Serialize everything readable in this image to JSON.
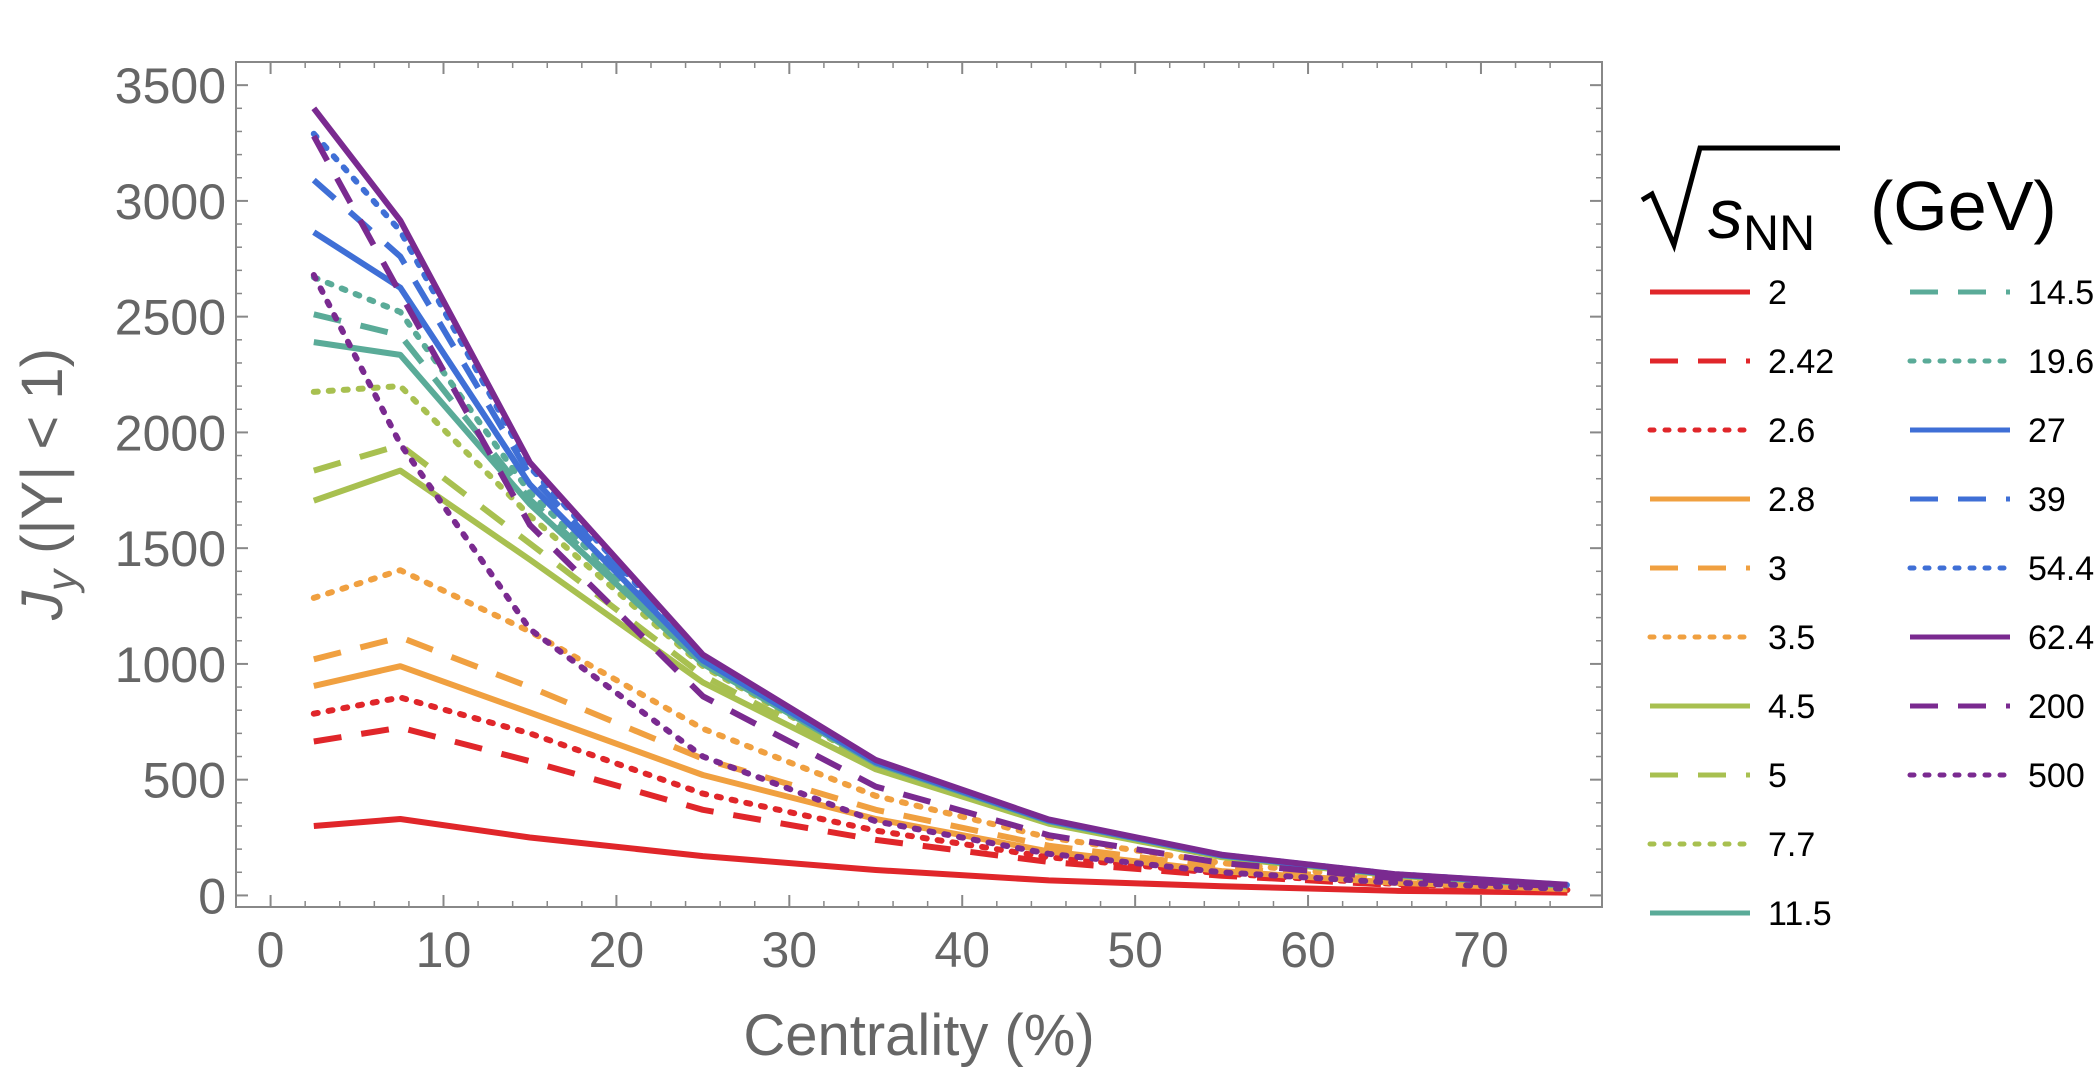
{
  "chart_data": {
    "type": "line",
    "title": "",
    "xlabel": "Centrality (%)",
    "ylabel": "J_y (|Y| < 1)",
    "ylabel_parts": {
      "symbol": "J",
      "subscript": "y",
      "rest": " (|Y| < 1)"
    },
    "xlim": [
      -2,
      77
    ],
    "ylim": [
      -50,
      3600
    ],
    "xticks": [
      0,
      10,
      20,
      30,
      40,
      50,
      60,
      70
    ],
    "yticks": [
      0,
      500,
      1000,
      1500,
      2000,
      2500,
      3000,
      3500
    ],
    "grid": false,
    "legend": {
      "placement": "right",
      "title_symbol": "s",
      "title_subscript": "NN",
      "title_units": "(GeV)"
    },
    "x": [
      2.5,
      7.5,
      15,
      25,
      35,
      45,
      55,
      65,
      75
    ],
    "series": [
      {
        "name": "2",
        "color": "#e0262a",
        "dash": "solid",
        "values": [
          300,
          330,
          250,
          170,
          110,
          65,
          40,
          20,
          12
        ]
      },
      {
        "name": "2.42",
        "color": "#e0262a",
        "dash": "dashed",
        "values": [
          665,
          725,
          580,
          370,
          240,
          145,
          85,
          45,
          22
        ]
      },
      {
        "name": "2.6",
        "color": "#e0262a",
        "dash": "dotted",
        "values": [
          785,
          855,
          700,
          440,
          280,
          165,
          95,
          50,
          24
        ]
      },
      {
        "name": "2.8",
        "color": "#f0a040",
        "dash": "solid",
        "values": [
          905,
          990,
          790,
          520,
          330,
          190,
          105,
          55,
          27
        ]
      },
      {
        "name": "3",
        "color": "#f0a040",
        "dash": "dashed",
        "values": [
          1020,
          1115,
          900,
          590,
          370,
          215,
          120,
          62,
          30
        ]
      },
      {
        "name": "3.5",
        "color": "#f0a040",
        "dash": "dotted",
        "values": [
          1285,
          1405,
          1140,
          720,
          430,
          250,
          140,
          72,
          34
        ]
      },
      {
        "name": "4.5",
        "color": "#a8c050",
        "dash": "solid",
        "values": [
          1705,
          1835,
          1450,
          920,
          545,
          310,
          165,
          85,
          40
        ]
      },
      {
        "name": "5",
        "color": "#a8c050",
        "dash": "dashed",
        "values": [
          1835,
          1945,
          1520,
          950,
          555,
          315,
          168,
          86,
          41
        ]
      },
      {
        "name": "7.7",
        "color": "#a8c050",
        "dash": "dotted",
        "values": [
          2175,
          2200,
          1640,
          990,
          565,
          318,
          170,
          88,
          42
        ]
      },
      {
        "name": "11.5",
        "color": "#5aab98",
        "dash": "solid",
        "values": [
          2390,
          2335,
          1690,
          1000,
          570,
          320,
          172,
          89,
          43
        ]
      },
      {
        "name": "14.5",
        "color": "#5aab98",
        "dash": "dashed",
        "values": [
          2510,
          2420,
          1710,
          1005,
          572,
          321,
          172,
          89,
          43
        ]
      },
      {
        "name": "19.6",
        "color": "#5aab98",
        "dash": "dotted",
        "values": [
          2670,
          2520,
          1740,
          1010,
          573,
          322,
          173,
          90,
          44
        ]
      },
      {
        "name": "27",
        "color": "#3f6fd6",
        "dash": "solid",
        "values": [
          2865,
          2625,
          1775,
          1015,
          575,
          323,
          173,
          90,
          44
        ]
      },
      {
        "name": "39",
        "color": "#3f6fd6",
        "dash": "dashed",
        "values": [
          3090,
          2760,
          1815,
          1020,
          577,
          324,
          174,
          91,
          45
        ]
      },
      {
        "name": "54.4",
        "color": "#3f6fd6",
        "dash": "dotted",
        "values": [
          3290,
          2870,
          1850,
          1030,
          580,
          325,
          175,
          92,
          45
        ]
      },
      {
        "name": "62.4",
        "color": "#7a2a90",
        "dash": "solid",
        "values": [
          3400,
          2915,
          1870,
          1040,
          585,
          328,
          176,
          92,
          46
        ]
      },
      {
        "name": "200",
        "color": "#7a2a90",
        "dash": "dashed",
        "values": [
          3280,
          2600,
          1600,
          860,
          470,
          260,
          140,
          75,
          38
        ]
      },
      {
        "name": "500",
        "color": "#7a2a90",
        "dash": "dotted",
        "values": [
          2680,
          1950,
          1150,
          600,
          320,
          180,
          100,
          55,
          28
        ]
      }
    ]
  }
}
